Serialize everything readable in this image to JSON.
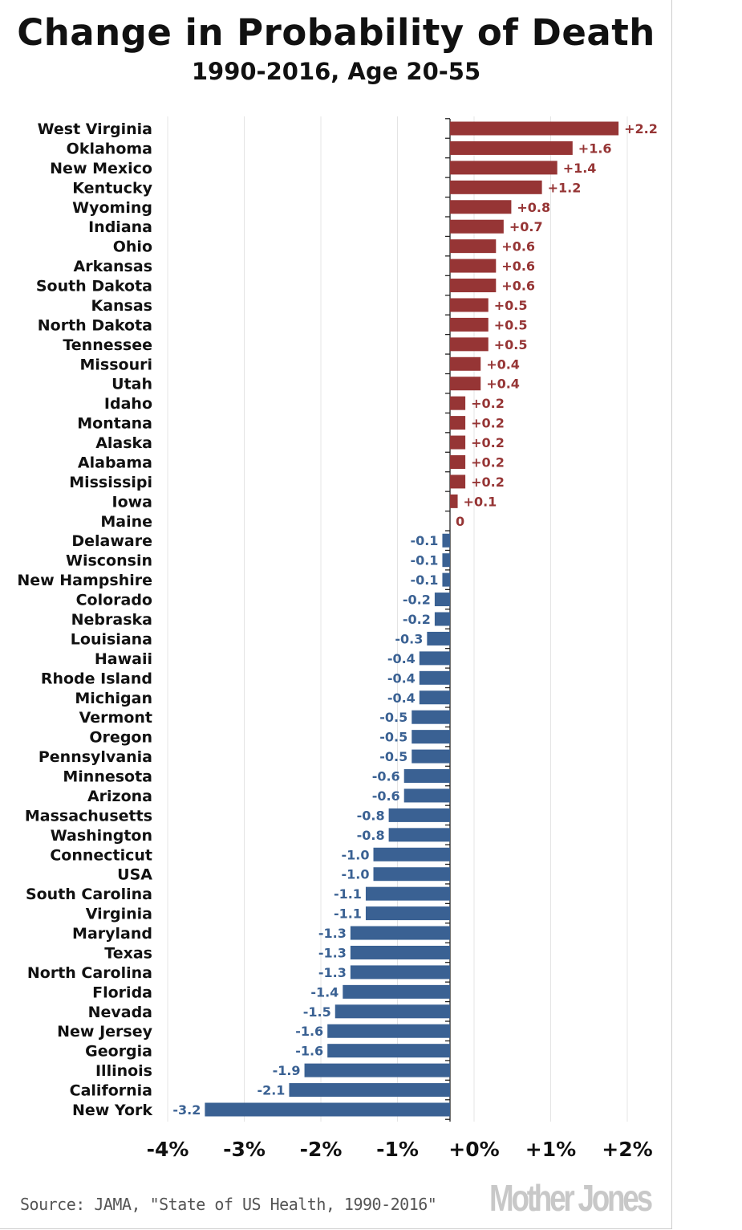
{
  "chart_data": {
    "type": "bar",
    "orientation": "horizontal",
    "title": "Change in Probability of Death",
    "subtitle": "1990-2016, Age 20-55",
    "categories": [
      "West Virginia",
      "Oklahoma",
      "New Mexico",
      "Kentucky",
      "Wyoming",
      "Indiana",
      "Ohio",
      "Arkansas",
      "South Dakota",
      "Kansas",
      "North Dakota",
      "Tennessee",
      "Missouri",
      "Utah",
      "Idaho",
      "Montana",
      "Alaska",
      "Alabama",
      "Mississipi",
      "Iowa",
      "Maine",
      "Delaware",
      "Wisconsin",
      "New Hampshire",
      "Colorado",
      "Nebraska",
      "Louisiana",
      "Hawaii",
      "Rhode Island",
      "Michigan",
      "Vermont",
      "Oregon",
      "Pennsylvania",
      "Minnesota",
      "Arizona",
      "Massachusetts",
      "Washington",
      "Connecticut",
      "USA",
      "South Carolina",
      "Virginia",
      "Maryland",
      "Texas",
      "North Carolina",
      "Florida",
      "Nevada",
      "New Jersey",
      "Georgia",
      "Illinois",
      "California",
      "New York"
    ],
    "values": [
      2.2,
      1.6,
      1.4,
      1.2,
      0.8,
      0.7,
      0.6,
      0.6,
      0.6,
      0.5,
      0.5,
      0.5,
      0.4,
      0.4,
      0.2,
      0.2,
      0.2,
      0.2,
      0.2,
      0.1,
      0,
      -0.1,
      -0.1,
      -0.1,
      -0.2,
      -0.2,
      -0.3,
      -0.4,
      -0.4,
      -0.4,
      -0.5,
      -0.5,
      -0.5,
      -0.6,
      -0.6,
      -0.8,
      -0.8,
      -1.0,
      -1.0,
      -1.1,
      -1.1,
      -1.3,
      -1.3,
      -1.3,
      -1.4,
      -1.5,
      -1.6,
      -1.6,
      -1.9,
      -2.1,
      -3.2
    ],
    "data_labels": [
      "+2.2",
      "+1.6",
      "+1.4",
      "+1.2",
      "+0.8",
      "+0.7",
      "+0.6",
      "+0.6",
      "+0.6",
      "+0.5",
      "+0.5",
      "+0.5",
      "+0.4",
      "+0.4",
      "+0.2",
      "+0.2",
      "+0.2",
      "+0.2",
      "+0.2",
      "+0.1",
      "0",
      "-0.1",
      "-0.1",
      "-0.1",
      "-0.2",
      "-0.2",
      "-0.3",
      "-0.4",
      "-0.4",
      "-0.4",
      "-0.5",
      "-0.5",
      "-0.5",
      "-0.6",
      "-0.6",
      "-0.8",
      "-0.8",
      "-1.0",
      "-1.0",
      "-1.1",
      "-1.1",
      "-1.3",
      "-1.3",
      "-1.3",
      "-1.4",
      "-1.5",
      "-1.6",
      "-1.6",
      "-1.9",
      "-2.1",
      "-3.2"
    ],
    "x_ticks": [
      -4,
      -3,
      -2,
      -1,
      0,
      1,
      2
    ],
    "x_tick_labels": [
      "-4%",
      "-3%",
      "-2%",
      "-1%",
      "+0%",
      "+1%",
      "+2%"
    ],
    "xlim": [
      -4,
      2.3
    ],
    "grid": "vertical",
    "colors": {
      "positive": "#963535",
      "negative": "#3a6193"
    }
  },
  "footer": {
    "source": "Source: JAMA, \"State of US Health, 1990-2016\"",
    "logo": "Mother Jones"
  }
}
